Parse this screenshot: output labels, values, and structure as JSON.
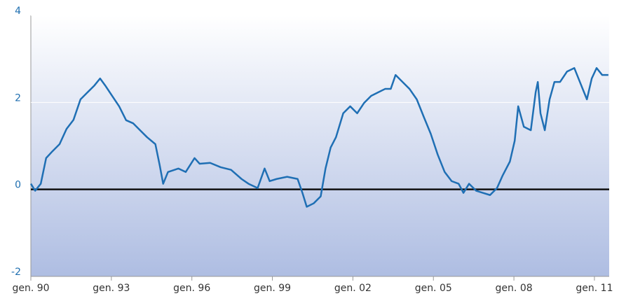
{
  "chart_data": {
    "type": "line",
    "x": [
      1990.0,
      1990.16,
      1990.37,
      1990.57,
      1990.81,
      1991.07,
      1991.33,
      1991.59,
      1991.85,
      1992.11,
      1992.37,
      1992.58,
      1992.77,
      1993.03,
      1993.29,
      1993.55,
      1993.81,
      1994.07,
      1994.33,
      1994.64,
      1994.8,
      1994.93,
      1995.11,
      1995.5,
      1995.77,
      1996.1,
      1996.29,
      1996.68,
      1997.07,
      1997.46,
      1997.85,
      1998.11,
      1998.45,
      1998.71,
      1998.9,
      1999.16,
      1999.55,
      1999.94,
      2000.12,
      2000.28,
      2000.54,
      2000.8,
      2000.98,
      2001.17,
      2001.37,
      2001.64,
      2001.9,
      2002.16,
      2002.42,
      2002.68,
      2002.94,
      2003.2,
      2003.41,
      2003.59,
      2003.85,
      2004.11,
      2004.38,
      2004.64,
      2004.9,
      2005.16,
      2005.42,
      2005.68,
      2005.94,
      2006.12,
      2006.33,
      2006.59,
      2006.85,
      2007.11,
      2007.37,
      2007.58,
      2007.85,
      2008.03,
      2008.16,
      2008.37,
      2008.63,
      2008.81,
      2008.89,
      2008.99,
      2009.15,
      2009.33,
      2009.51,
      2009.72,
      2009.98,
      2010.25,
      2010.51,
      2010.72,
      2010.9,
      2011.08,
      2011.29,
      2011.52
    ],
    "series": [
      {
        "color": "#1f6fb4",
        "values": [
          0.13,
          -0.03,
          0.13,
          0.72,
          0.88,
          1.04,
          1.39,
          1.6,
          2.07,
          2.23,
          2.39,
          2.55,
          2.39,
          2.15,
          1.91,
          1.59,
          1.52,
          1.36,
          1.2,
          1.04,
          0.56,
          0.13,
          0.4,
          0.48,
          0.4,
          0.72,
          0.59,
          0.61,
          0.51,
          0.45,
          0.24,
          0.13,
          0.03,
          0.48,
          0.19,
          0.24,
          0.29,
          0.24,
          -0.08,
          -0.4,
          -0.32,
          -0.16,
          0.48,
          0.96,
          1.2,
          1.75,
          1.91,
          1.75,
          1.99,
          2.15,
          2.23,
          2.31,
          2.31,
          2.63,
          2.47,
          2.31,
          2.07,
          1.67,
          1.28,
          0.8,
          0.4,
          0.19,
          0.13,
          -0.08,
          0.13,
          -0.03,
          -0.08,
          -0.13,
          0.03,
          0.32,
          0.64,
          1.12,
          1.91,
          1.44,
          1.36,
          2.23,
          2.47,
          1.75,
          1.36,
          2.07,
          2.47,
          2.47,
          2.71,
          2.79,
          2.39,
          2.07,
          2.55,
          2.79,
          2.63,
          2.63
        ]
      }
    ],
    "xlim": [
      1990.0,
      2011.55
    ],
    "xticks": [
      {
        "value": 1990,
        "label": "gen. 90"
      },
      {
        "value": 1993,
        "label": "gen. 93"
      },
      {
        "value": 1996,
        "label": "gen. 96"
      },
      {
        "value": 1999,
        "label": "gen. 99"
      },
      {
        "value": 2002,
        "label": "gen. 02"
      },
      {
        "value": 2005,
        "label": "gen. 05"
      },
      {
        "value": 2008,
        "label": "gen. 08"
      },
      {
        "value": 2011,
        "label": "gen. 11"
      }
    ],
    "ylim": [
      -2,
      4
    ],
    "yticks": [
      -2,
      0,
      2,
      4
    ],
    "grid": true
  }
}
